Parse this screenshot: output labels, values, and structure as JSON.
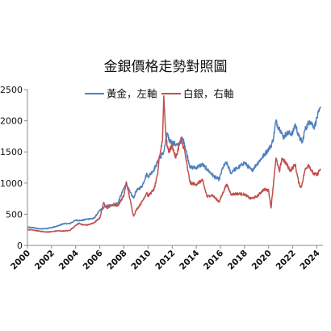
{
  "chart_data": {
    "type": "line",
    "title": "金銀價格走勢對照圖",
    "xlabel": "",
    "ylabel": "",
    "xlim": [
      2000,
      2024.5
    ],
    "ylim": [
      0,
      2500
    ],
    "y_ticks": [
      0,
      500,
      1000,
      1500,
      2000,
      2500
    ],
    "x_ticks": [
      "2000",
      "2002",
      "2004",
      "2006",
      "2008",
      "2010",
      "2012",
      "2014",
      "2016",
      "2018",
      "2020",
      "2022",
      "2024"
    ],
    "grid": false,
    "legend_position": "top",
    "series": [
      {
        "name": "黃金，左軸",
        "color": "#4F81BD",
        "points": [
          [
            2000.0,
            290
          ],
          [
            2000.5,
            285
          ],
          [
            2001.0,
            265
          ],
          [
            2001.5,
            270
          ],
          [
            2002.0,
            285
          ],
          [
            2002.5,
            310
          ],
          [
            2003.0,
            350
          ],
          [
            2003.5,
            350
          ],
          [
            2004.0,
            405
          ],
          [
            2004.5,
            400
          ],
          [
            2005.0,
            425
          ],
          [
            2005.5,
            430
          ],
          [
            2006.0,
            560
          ],
          [
            2006.5,
            630
          ],
          [
            2007.0,
            650
          ],
          [
            2007.5,
            680
          ],
          [
            2008.0,
            920
          ],
          [
            2008.2,
            980
          ],
          [
            2008.5,
            850
          ],
          [
            2008.8,
            760
          ],
          [
            2009.0,
            870
          ],
          [
            2009.5,
            950
          ],
          [
            2009.9,
            1150
          ],
          [
            2010.0,
            1100
          ],
          [
            2010.5,
            1220
          ],
          [
            2010.9,
            1380
          ],
          [
            2011.3,
            1500
          ],
          [
            2011.6,
            1800
          ],
          [
            2011.7,
            1700
          ],
          [
            2012.0,
            1650
          ],
          [
            2012.5,
            1600
          ],
          [
            2012.8,
            1720
          ],
          [
            2013.0,
            1650
          ],
          [
            2013.3,
            1400
          ],
          [
            2013.5,
            1250
          ],
          [
            2014.0,
            1250
          ],
          [
            2014.5,
            1300
          ],
          [
            2015.0,
            1200
          ],
          [
            2015.5,
            1100
          ],
          [
            2015.9,
            1060
          ],
          [
            2016.2,
            1250
          ],
          [
            2016.5,
            1330
          ],
          [
            2016.9,
            1150
          ],
          [
            2017.0,
            1200
          ],
          [
            2017.5,
            1250
          ],
          [
            2018.0,
            1330
          ],
          [
            2018.6,
            1200
          ],
          [
            2019.0,
            1300
          ],
          [
            2019.5,
            1420
          ],
          [
            2019.9,
            1520
          ],
          [
            2020.2,
            1600
          ],
          [
            2020.4,
            1720
          ],
          [
            2020.6,
            2000
          ],
          [
            2020.8,
            1900
          ],
          [
            2021.0,
            1850
          ],
          [
            2021.2,
            1730
          ],
          [
            2021.5,
            1800
          ],
          [
            2022.0,
            1800
          ],
          [
            2022.2,
            1950
          ],
          [
            2022.5,
            1750
          ],
          [
            2022.8,
            1650
          ],
          [
            2023.0,
            1850
          ],
          [
            2023.4,
            2000
          ],
          [
            2023.8,
            1900
          ],
          [
            2024.0,
            2050
          ],
          [
            2024.3,
            2200
          ]
        ]
      },
      {
        "name": "白銀，右軸",
        "color": "#C0504D",
        "points": [
          [
            2000.0,
            255
          ],
          [
            2000.5,
            245
          ],
          [
            2001.0,
            230
          ],
          [
            2001.5,
            215
          ],
          [
            2002.0,
            220
          ],
          [
            2002.5,
            235
          ],
          [
            2003.0,
            230
          ],
          [
            2003.5,
            240
          ],
          [
            2004.0,
            320
          ],
          [
            2004.3,
            360
          ],
          [
            2004.5,
            330
          ],
          [
            2005.0,
            330
          ],
          [
            2005.5,
            360
          ],
          [
            2006.0,
            440
          ],
          [
            2006.3,
            680
          ],
          [
            2006.6,
            600
          ],
          [
            2007.0,
            650
          ],
          [
            2007.5,
            640
          ],
          [
            2008.0,
            800
          ],
          [
            2008.2,
            1020
          ],
          [
            2008.6,
            650
          ],
          [
            2008.8,
            470
          ],
          [
            2009.0,
            560
          ],
          [
            2009.5,
            700
          ],
          [
            2009.9,
            850
          ],
          [
            2010.0,
            790
          ],
          [
            2010.5,
            900
          ],
          [
            2010.8,
            1140
          ],
          [
            2010.9,
            1370
          ],
          [
            2011.2,
            1700
          ],
          [
            2011.3,
            2400
          ],
          [
            2011.5,
            1700
          ],
          [
            2011.7,
            1500
          ],
          [
            2012.0,
            1600
          ],
          [
            2012.3,
            1400
          ],
          [
            2012.7,
            1700
          ],
          [
            2013.0,
            1550
          ],
          [
            2013.3,
            1200
          ],
          [
            2013.5,
            1000
          ],
          [
            2014.0,
            980
          ],
          [
            2014.5,
            1050
          ],
          [
            2014.9,
            780
          ],
          [
            2015.3,
            810
          ],
          [
            2015.9,
            700
          ],
          [
            2016.5,
            980
          ],
          [
            2016.9,
            820
          ],
          [
            2017.5,
            830
          ],
          [
            2018.0,
            820
          ],
          [
            2018.5,
            750
          ],
          [
            2019.0,
            780
          ],
          [
            2019.6,
            900
          ],
          [
            2020.0,
            880
          ],
          [
            2020.2,
            600
          ],
          [
            2020.6,
            1400
          ],
          [
            2020.9,
            1180
          ],
          [
            2021.1,
            1400
          ],
          [
            2021.5,
            1300
          ],
          [
            2021.8,
            1200
          ],
          [
            2022.0,
            1250
          ],
          [
            2022.2,
            1300
          ],
          [
            2022.5,
            1000
          ],
          [
            2022.7,
            930
          ],
          [
            2023.0,
            1200
          ],
          [
            2023.3,
            1300
          ],
          [
            2023.7,
            1150
          ],
          [
            2024.0,
            1130
          ],
          [
            2024.3,
            1230
          ]
        ]
      }
    ]
  }
}
